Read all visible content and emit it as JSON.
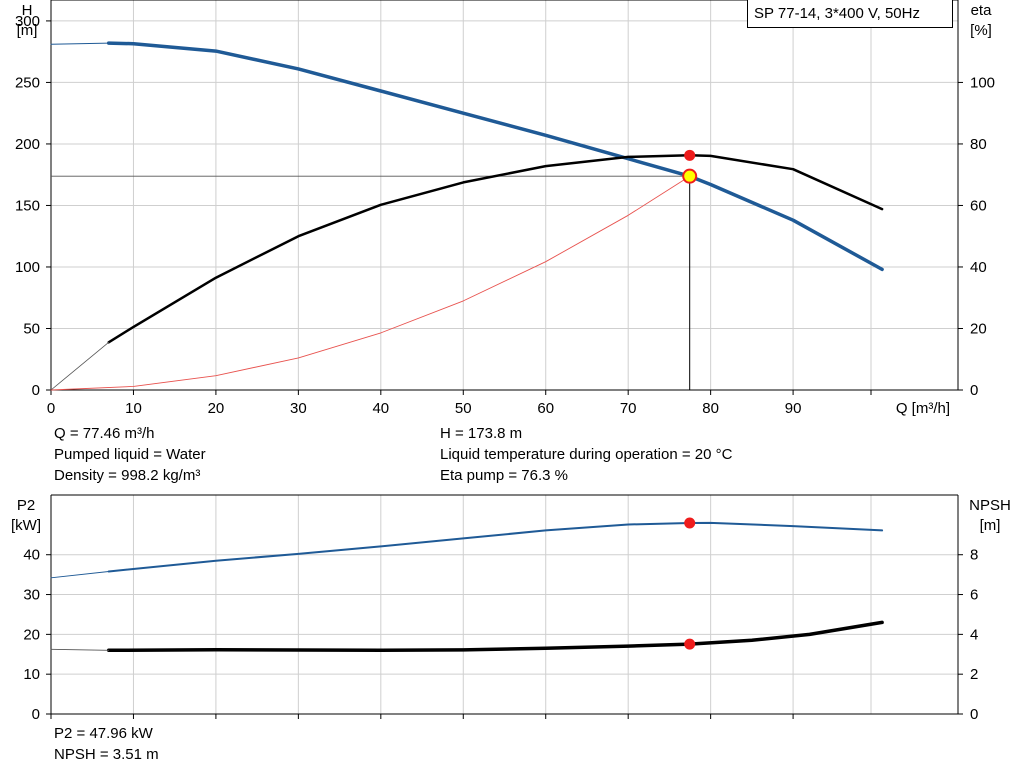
{
  "chart_data": [
    {
      "type": "line",
      "x_range": [
        0,
        110
      ],
      "xlabel": "Q [m³/h]",
      "x_ticks": [
        0,
        10,
        20,
        30,
        40,
        50,
        60,
        70,
        80,
        90
      ],
      "left_axis": {
        "label_line1": "H",
        "label_line2": "[m]",
        "range": [
          0,
          317
        ],
        "ticks": [
          0,
          50,
          100,
          150,
          200,
          250,
          300
        ]
      },
      "right_axis": {
        "label_line1": "eta",
        "label_line2": "[%]",
        "range": [
          0,
          126.8
        ],
        "ticks": [
          0,
          20,
          40,
          60,
          80,
          100
        ]
      },
      "legend_text": "SP 77-14, 3*400 V, 50Hz",
      "grid": true,
      "series": [
        {
          "axis": "left",
          "color": "#1f5a96",
          "width": 3.5,
          "points": [
            [
              7,
              282
            ],
            [
              10,
              281.5
            ],
            [
              20,
              275.5
            ],
            [
              30,
              261
            ],
            [
              40,
              243
            ],
            [
              50,
              225
            ],
            [
              60,
              207
            ],
            [
              70,
              188
            ],
            [
              77.46,
              173.8
            ],
            [
              80,
              167
            ],
            [
              90,
              138
            ],
            [
              100.8,
              98
            ]
          ]
        },
        {
          "axis": "left",
          "color": "#1f5a96",
          "width": 1,
          "dashed_ext": true,
          "points": [
            [
              0,
              281
            ],
            [
              7,
              282
            ]
          ]
        },
        {
          "axis": "right",
          "color": "#000000",
          "width": 2.5,
          "points": [
            [
              7,
              15.5
            ],
            [
              10,
              20.5
            ],
            [
              20,
              36.5
            ],
            [
              30,
              50
            ],
            [
              40,
              60.2
            ],
            [
              50,
              67.5
            ],
            [
              60,
              72.8
            ],
            [
              70,
              75.8
            ],
            [
              77.46,
              76.3
            ],
            [
              80,
              76.1
            ],
            [
              90,
              71.8
            ],
            [
              100.8,
              58.8
            ]
          ]
        },
        {
          "axis": "right",
          "color": "#555555",
          "width": 0.8,
          "points": [
            [
              0,
              0
            ],
            [
              7,
              15.5
            ]
          ]
        },
        {
          "axis": "left",
          "color": "#e8534f",
          "width": 0.9,
          "points": [
            [
              0,
              0
            ],
            [
              10,
              2.9
            ],
            [
              20,
              11.6
            ],
            [
              30,
              26.1
            ],
            [
              40,
              46.4
            ],
            [
              50,
              72.4
            ],
            [
              60,
              104.3
            ],
            [
              70,
              142
            ],
            [
              77.46,
              173.8
            ]
          ]
        }
      ],
      "operating_point": {
        "q": 77.46,
        "h": 173.8,
        "eta": 76.3
      }
    },
    {
      "type": "line",
      "x_range": [
        0,
        110
      ],
      "x_ticks": [
        0,
        10,
        20,
        30,
        40,
        50,
        60,
        70,
        80,
        90
      ],
      "left_axis": {
        "label_line1": "P2",
        "label_line2": "[kW]",
        "range": [
          0,
          55
        ],
        "ticks": [
          0,
          10,
          20,
          30,
          40
        ]
      },
      "right_axis": {
        "label_line1": "NPSH",
        "label_line2": "[m]",
        "range": [
          0,
          11
        ],
        "ticks": [
          0,
          2,
          4,
          6,
          8
        ]
      },
      "grid": true,
      "series": [
        {
          "axis": "left",
          "color": "#1f5a96",
          "width": 2,
          "points": [
            [
              7,
              35.8
            ],
            [
              20,
              38.5
            ],
            [
              30,
              40.2
            ],
            [
              40,
              42.1
            ],
            [
              50,
              44.1
            ],
            [
              60,
              46.1
            ],
            [
              70,
              47.6
            ],
            [
              77.46,
              47.96
            ],
            [
              80,
              48
            ],
            [
              90,
              47.2
            ],
            [
              100.8,
              46.1
            ]
          ]
        },
        {
          "axis": "left",
          "color": "#1f5a96",
          "width": 0.9,
          "points": [
            [
              0,
              34.2
            ],
            [
              7,
              35.8
            ]
          ]
        },
        {
          "axis": "right",
          "color": "#000000",
          "width": 3.5,
          "points": [
            [
              7,
              3.2
            ],
            [
              20,
              3.23
            ],
            [
              40,
              3.2
            ],
            [
              50,
              3.22
            ],
            [
              60,
              3.3
            ],
            [
              70,
              3.41
            ],
            [
              77.46,
              3.51
            ],
            [
              85,
              3.7
            ],
            [
              92,
              4.0
            ],
            [
              100.8,
              4.6
            ]
          ]
        },
        {
          "axis": "right",
          "color": "#555555",
          "width": 0.8,
          "points": [
            [
              0,
              3.25
            ],
            [
              7,
              3.2
            ]
          ]
        }
      ],
      "operating_point": {
        "q": 77.46,
        "p2": 47.96,
        "npsh": 3.51
      }
    }
  ],
  "info": {
    "q": "Q = 77.46 m³/h",
    "liquid": "Pumped liquid = Water",
    "density": "Density = 998.2 kg/m³",
    "h": "H = 173.8 m",
    "temperature": "Liquid temperature during operation = 20 °C",
    "eta": "Eta pump = 76.3 %",
    "p2": "P2 = 47.96 kW",
    "npsh": "NPSH = 3.51 m"
  },
  "colors": {
    "blue": "#1f5a96",
    "red_dot": "#ee1c1c",
    "grid": "#cfcfcf",
    "op_marker_fill": "#ffff00"
  }
}
